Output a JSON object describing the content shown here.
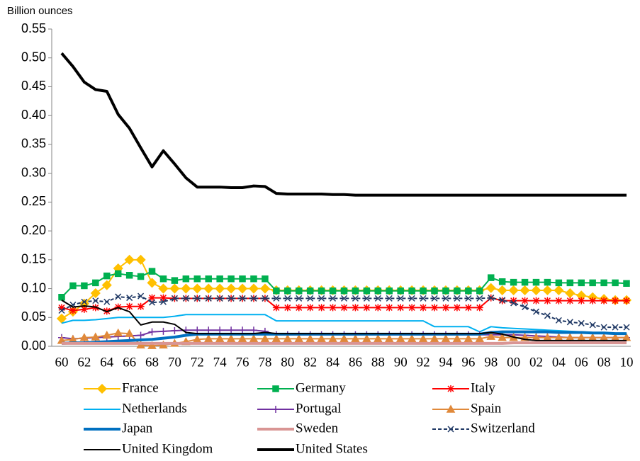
{
  "chart_data": {
    "type": "line",
    "y_label": "Billion ounces",
    "categories": [
      "60",
      null,
      "62",
      null,
      "64",
      null,
      "66",
      null,
      "68",
      null,
      "70",
      null,
      "72",
      null,
      "74",
      null,
      "76",
      null,
      "78",
      null,
      "80",
      null,
      "82",
      null,
      "84",
      null,
      "86",
      null,
      "88",
      null,
      "90",
      null,
      "92",
      null,
      "94",
      null,
      "96",
      null,
      "98",
      null,
      "00",
      null,
      "02",
      null,
      "04",
      null,
      "06",
      null,
      "08",
      null,
      "10"
    ],
    "ylim": [
      0,
      0.55
    ],
    "yticks": [
      {
        "value": 0,
        "label": "0.00"
      },
      {
        "value": 0.05,
        "label": "0.05"
      },
      {
        "value": 0.1,
        "label": "0.10"
      },
      {
        "value": 0.15,
        "label": "0.15"
      },
      {
        "value": 0.2,
        "label": "0.20"
      },
      {
        "value": 0.25,
        "label": "0.25"
      },
      {
        "value": 0.3,
        "label": "0.30"
      },
      {
        "value": 0.35,
        "label": "0.35"
      },
      {
        "value": 0.4,
        "label": "0.40"
      },
      {
        "value": 0.45,
        "label": "0.45"
      },
      {
        "value": 0.5,
        "label": "0.50"
      },
      {
        "value": 0.55,
        "label": "0.55"
      }
    ],
    "grid": false,
    "legend": "bottom",
    "series": [
      {
        "name": "France",
        "color": "#ffc000",
        "marker": "diamond",
        "line_width": 2,
        "values": [
          0.048,
          0.06,
          0.074,
          0.092,
          0.106,
          0.135,
          0.15,
          0.15,
          0.11,
          0.1,
          0.1,
          0.1,
          0.1,
          0.1,
          0.1,
          0.1,
          0.1,
          0.1,
          0.1,
          0.097,
          0.097,
          0.097,
          0.097,
          0.097,
          0.097,
          0.097,
          0.097,
          0.097,
          0.097,
          0.097,
          0.097,
          0.097,
          0.097,
          0.097,
          0.097,
          0.097,
          0.097,
          0.097,
          0.101,
          0.097,
          0.097,
          0.097,
          0.097,
          0.097,
          0.097,
          0.092,
          0.088,
          0.085,
          0.082,
          0.08,
          0.08
        ]
      },
      {
        "name": "Germany",
        "color": "#00b050",
        "marker": "square",
        "line_width": 2,
        "values": [
          0.085,
          0.105,
          0.105,
          0.11,
          0.122,
          0.126,
          0.123,
          0.121,
          0.13,
          0.117,
          0.114,
          0.117,
          0.117,
          0.117,
          0.117,
          0.117,
          0.117,
          0.117,
          0.117,
          0.096,
          0.096,
          0.096,
          0.096,
          0.096,
          0.096,
          0.096,
          0.096,
          0.096,
          0.096,
          0.096,
          0.096,
          0.096,
          0.096,
          0.096,
          0.096,
          0.096,
          0.096,
          0.096,
          0.119,
          0.112,
          0.111,
          0.111,
          0.111,
          0.111,
          0.11,
          0.11,
          0.11,
          0.11,
          0.11,
          0.11,
          0.109
        ]
      },
      {
        "name": "Italy",
        "color": "#ff0000",
        "marker": "star",
        "line_width": 2,
        "values": [
          0.067,
          0.062,
          0.064,
          0.067,
          0.061,
          0.068,
          0.069,
          0.069,
          0.084,
          0.084,
          0.083,
          0.083,
          0.083,
          0.083,
          0.083,
          0.083,
          0.083,
          0.083,
          0.083,
          0.067,
          0.067,
          0.067,
          0.067,
          0.067,
          0.067,
          0.067,
          0.067,
          0.067,
          0.067,
          0.067,
          0.067,
          0.067,
          0.067,
          0.067,
          0.067,
          0.067,
          0.067,
          0.067,
          0.084,
          0.079,
          0.079,
          0.079,
          0.079,
          0.079,
          0.079,
          0.079,
          0.079,
          0.079,
          0.079,
          0.079,
          0.079
        ]
      },
      {
        "name": "Netherlands",
        "color": "#00b0f0",
        "marker": "none",
        "line_width": 2,
        "values": [
          0.04,
          0.045,
          0.045,
          0.046,
          0.048,
          0.05,
          0.05,
          0.05,
          0.05,
          0.05,
          0.052,
          0.055,
          0.055,
          0.055,
          0.055,
          0.055,
          0.055,
          0.055,
          0.055,
          0.044,
          0.044,
          0.044,
          0.044,
          0.044,
          0.044,
          0.044,
          0.044,
          0.044,
          0.044,
          0.044,
          0.044,
          0.044,
          0.044,
          0.034,
          0.034,
          0.034,
          0.034,
          0.025,
          0.034,
          0.032,
          0.031,
          0.03,
          0.029,
          0.028,
          0.027,
          0.026,
          0.025,
          0.024,
          0.023,
          0.022,
          0.021
        ]
      },
      {
        "name": "Portugal",
        "color": "#7030a0",
        "marker": "plus",
        "line_width": 2,
        "values": [
          0.015,
          0.013,
          0.014,
          0.015,
          0.016,
          0.017,
          0.018,
          0.019,
          0.025,
          0.026,
          0.027,
          0.028,
          0.028,
          0.028,
          0.028,
          0.028,
          0.028,
          0.028,
          0.026,
          0.02,
          0.02,
          0.02,
          0.02,
          0.02,
          0.02,
          0.02,
          0.02,
          0.02,
          0.02,
          0.02,
          0.02,
          0.02,
          0.02,
          0.02,
          0.02,
          0.02,
          0.02,
          0.02,
          0.02,
          0.02,
          0.02,
          0.019,
          0.018,
          0.017,
          0.016,
          0.015,
          0.015,
          0.015,
          0.015,
          0.015,
          0.015
        ]
      },
      {
        "name": "Spain",
        "color": "#e0893a",
        "marker": "triangle",
        "line_width": 2,
        "values": [
          0.01,
          0.012,
          0.015,
          0.016,
          0.019,
          0.023,
          0.022,
          0.002,
          0.001,
          0.002,
          0.005,
          0.008,
          0.012,
          0.013,
          0.013,
          0.013,
          0.013,
          0.013,
          0.013,
          0.013,
          0.013,
          0.013,
          0.013,
          0.013,
          0.013,
          0.013,
          0.013,
          0.013,
          0.013,
          0.013,
          0.013,
          0.013,
          0.013,
          0.013,
          0.013,
          0.013,
          0.013,
          0.013,
          0.017,
          0.015,
          0.015,
          0.015,
          0.015,
          0.015,
          0.015,
          0.015,
          0.015,
          0.015,
          0.015,
          0.015,
          0.015
        ]
      },
      {
        "name": "Japan",
        "color": "#0070c0",
        "marker": "none",
        "line_width": 4,
        "values": [
          0.005,
          0.006,
          0.006,
          0.007,
          0.008,
          0.009,
          0.01,
          0.011,
          0.012,
          0.014,
          0.016,
          0.019,
          0.021,
          0.021,
          0.021,
          0.021,
          0.021,
          0.021,
          0.021,
          0.021,
          0.021,
          0.021,
          0.021,
          0.021,
          0.021,
          0.021,
          0.021,
          0.021,
          0.021,
          0.021,
          0.021,
          0.021,
          0.021,
          0.021,
          0.021,
          0.021,
          0.021,
          0.021,
          0.024,
          0.025,
          0.025,
          0.025,
          0.025,
          0.025,
          0.024,
          0.024,
          0.024,
          0.023,
          0.023,
          0.022,
          0.022
        ]
      },
      {
        "name": "Sweden",
        "color": "#d99594",
        "marker": "none",
        "line_width": 4,
        "values": [
          0.005,
          0.005,
          0.005,
          0.005,
          0.005,
          0.005,
          0.005,
          0.005,
          0.005,
          0.005,
          0.005,
          0.005,
          0.005,
          0.005,
          0.005,
          0.005,
          0.005,
          0.005,
          0.005,
          0.005,
          0.005,
          0.005,
          0.005,
          0.005,
          0.005,
          0.005,
          0.005,
          0.005,
          0.005,
          0.005,
          0.005,
          0.005,
          0.005,
          0.005,
          0.005,
          0.005,
          0.005,
          0.005,
          0.005,
          0.005,
          0.006,
          0.006,
          0.006,
          0.006,
          0.006,
          0.006,
          0.006,
          0.006,
          0.006,
          0.006,
          0.006
        ]
      },
      {
        "name": "Switzerland",
        "color": "#1f3864",
        "marker": "x",
        "line_width": 2,
        "dashed": true,
        "values": [
          0.062,
          0.072,
          0.077,
          0.079,
          0.077,
          0.086,
          0.084,
          0.087,
          0.076,
          0.077,
          0.083,
          0.083,
          0.083,
          0.083,
          0.083,
          0.083,
          0.083,
          0.083,
          0.083,
          0.083,
          0.083,
          0.083,
          0.083,
          0.083,
          0.083,
          0.083,
          0.083,
          0.083,
          0.083,
          0.083,
          0.083,
          0.083,
          0.083,
          0.083,
          0.083,
          0.083,
          0.083,
          0.083,
          0.084,
          0.08,
          0.075,
          0.068,
          0.06,
          0.053,
          0.045,
          0.042,
          0.04,
          0.037,
          0.033,
          0.033,
          0.033
        ]
      },
      {
        "name": "United Kingdom",
        "color": "#000000",
        "marker": "none",
        "line_width": 2,
        "values": [
          0.08,
          0.068,
          0.07,
          0.068,
          0.06,
          0.067,
          0.06,
          0.037,
          0.042,
          0.042,
          0.038,
          0.024,
          0.022,
          0.022,
          0.022,
          0.022,
          0.022,
          0.022,
          0.024,
          0.022,
          0.022,
          0.022,
          0.022,
          0.022,
          0.022,
          0.022,
          0.022,
          0.022,
          0.022,
          0.022,
          0.022,
          0.022,
          0.022,
          0.022,
          0.022,
          0.022,
          0.022,
          0.022,
          0.024,
          0.021,
          0.016,
          0.012,
          0.01,
          0.01,
          0.01,
          0.01,
          0.01,
          0.01,
          0.01,
          0.01,
          0.01
        ]
      },
      {
        "name": "United States",
        "color": "#000000",
        "marker": "none",
        "line_width": 4,
        "values": [
          0.508,
          0.485,
          0.458,
          0.445,
          0.442,
          0.402,
          0.378,
          0.344,
          0.311,
          0.339,
          0.316,
          0.292,
          0.276,
          0.276,
          0.276,
          0.275,
          0.275,
          0.278,
          0.277,
          0.265,
          0.264,
          0.264,
          0.264,
          0.264,
          0.263,
          0.263,
          0.262,
          0.262,
          0.262,
          0.262,
          0.262,
          0.262,
          0.262,
          0.262,
          0.262,
          0.262,
          0.262,
          0.262,
          0.262,
          0.262,
          0.262,
          0.262,
          0.262,
          0.262,
          0.262,
          0.262,
          0.262,
          0.262,
          0.262,
          0.262,
          0.262
        ]
      }
    ]
  }
}
